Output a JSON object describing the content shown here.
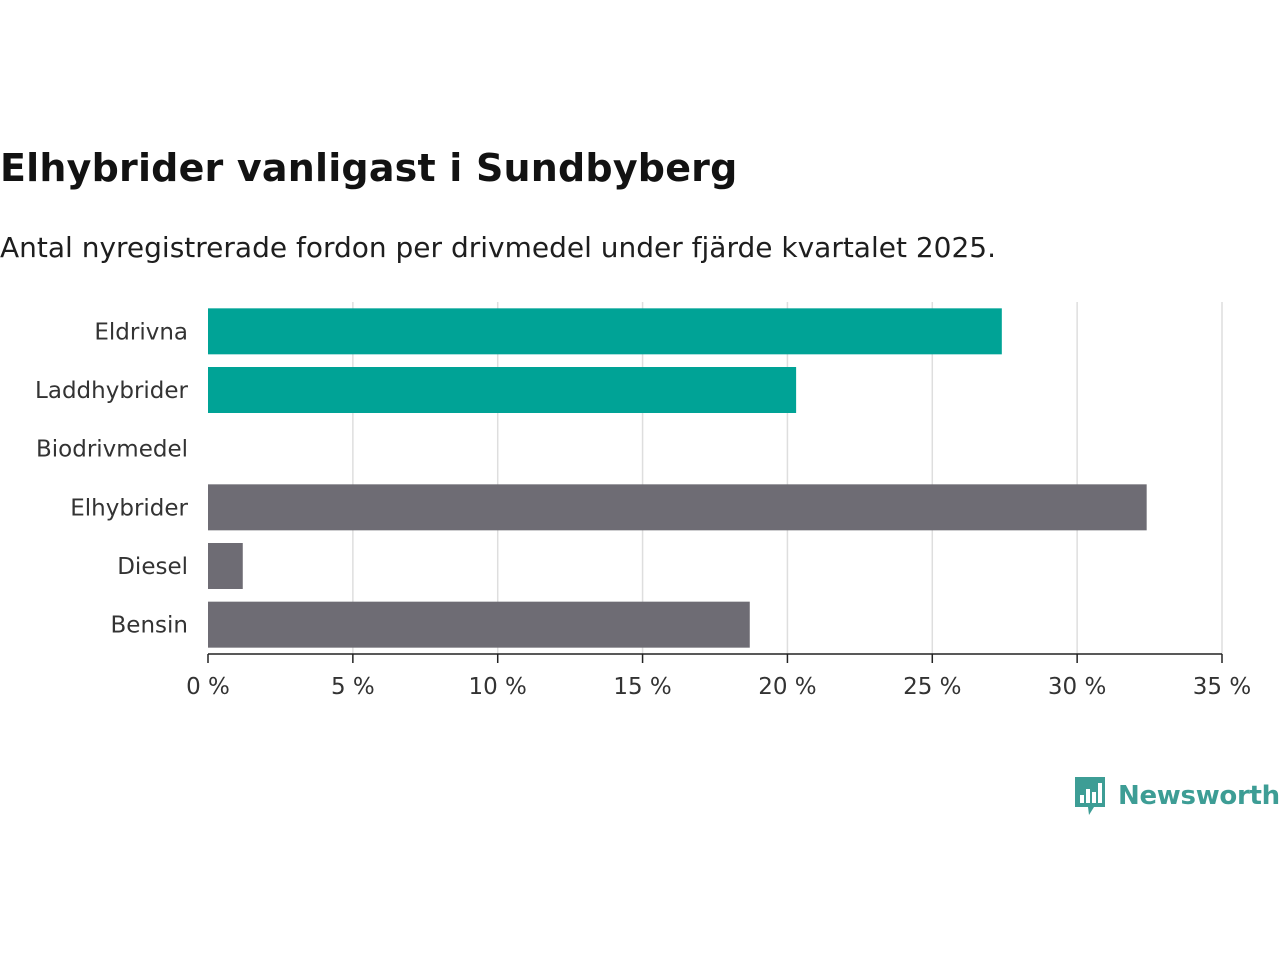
{
  "chart_data": {
    "type": "bar",
    "orientation": "horizontal",
    "title": "Elhybrider vanligast i Sundbyberg",
    "subtitle": "Antal nyregistrerade fordon per drivmedel under fjärde kvartalet 2025.",
    "categories": [
      "Eldrivna",
      "Laddhybrider",
      "Biodrivmedel",
      "Elhybrider",
      "Diesel",
      "Bensin"
    ],
    "values": [
      27.4,
      20.3,
      0,
      32.4,
      1.2,
      18.7
    ],
    "bar_colors": [
      "#00a396",
      "#00a396",
      "#6e6c74",
      "#6e6c74",
      "#6e6c74",
      "#6e6c74"
    ],
    "xlim": [
      0,
      35
    ],
    "x_ticks": [
      0,
      5,
      10,
      15,
      20,
      25,
      30,
      35
    ],
    "x_tick_labels": [
      "0 %",
      "5 %",
      "10 %",
      "15 %",
      "20 %",
      "25 %",
      "30 %",
      "35 %"
    ],
    "xlabel": "",
    "ylabel": "",
    "grid": "vertical"
  },
  "branding": {
    "name": "Newsworthy",
    "icon": "newsworthy-logo-icon",
    "color": "#3d9d95"
  }
}
